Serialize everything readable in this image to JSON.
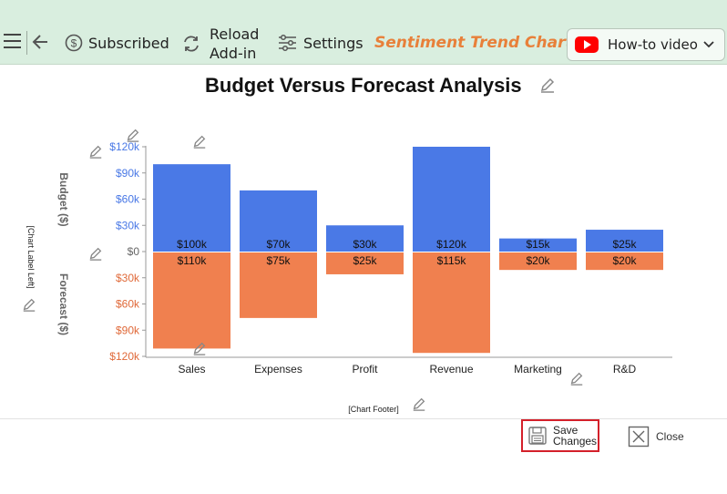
{
  "toolbar": {
    "subscribed_label": "Subscribed",
    "reload_label_line1": "Reload",
    "reload_label_line2": "Add-in",
    "settings_label": "Settings",
    "app_title": "Sentiment Trend Chart",
    "howto_label": "How-to video"
  },
  "chart_labels": {
    "label_left": "[Chart Label Left]",
    "footer": "[Chart Footer]"
  },
  "actions": {
    "save_line1": "Save",
    "save_line2": "Changes",
    "close_label": "Close"
  },
  "colors": {
    "budget": "#4a79e6",
    "forecast": "#f0804f",
    "budget_axis_text": "#4a79e6",
    "forecast_axis_text": "#e06a3a",
    "toolbar_bg": "#d9eedf",
    "title_accent": "#e8803a",
    "highlight_border": "#d4202a"
  },
  "chart_data": {
    "type": "bar",
    "title": "Budget Versus Forecast Analysis",
    "categories": [
      "Sales",
      "Expenses",
      "Profit",
      "Revenue",
      "Marketing",
      "R&D"
    ],
    "series": [
      {
        "name": "Budget ($)",
        "values": [
          100000,
          70000,
          30000,
          120000,
          15000,
          25000
        ],
        "labels": [
          "$100k",
          "$70k",
          "$30k",
          "$120k",
          "$15k",
          "$25k"
        ]
      },
      {
        "name": "Forecast ($)",
        "values": [
          110000,
          75000,
          25000,
          115000,
          20000,
          20000
        ],
        "labels": [
          "$110k",
          "$75k",
          "$25k",
          "$115k",
          "$20k",
          "$20k"
        ]
      }
    ],
    "ylabel_top": "Budget ($)",
    "ylabel_bottom": "Forecast ($)",
    "ylim": [
      0,
      120000
    ],
    "y_ticks_top": [
      "$120k",
      "$90k",
      "$60k",
      "$30k",
      "$0"
    ],
    "y_ticks_bottom": [
      "$30k",
      "$60k",
      "$90k",
      "$120k"
    ],
    "layout": "mirrored: budget above baseline, forecast below"
  }
}
